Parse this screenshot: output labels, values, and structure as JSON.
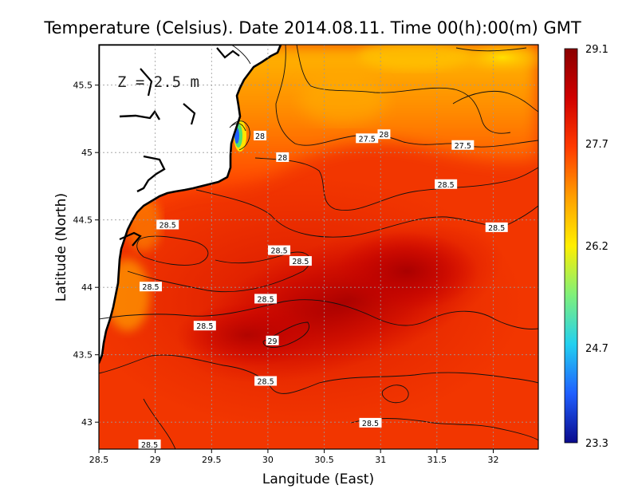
{
  "chart_data": {
    "type": "heatmap",
    "title": "Temperature (Celsius). Date 2014.08.11. Time 00(h):00(m)  GMT",
    "xlabel": "Langitude (East)",
    "ylabel": "Latitude (North)",
    "depth_label": "Z = 2.5 m",
    "xlim": [
      28.5,
      32.4
    ],
    "ylim": [
      42.8,
      45.8
    ],
    "x_ticks": [
      28.5,
      29,
      29.5,
      30,
      30.5,
      31,
      31.5,
      32
    ],
    "y_ticks": [
      43,
      43.5,
      44,
      44.5,
      45,
      45.5
    ],
    "colorbar": {
      "min": 23.3,
      "max": 29.1,
      "ticks": [
        29.1,
        27.7,
        26.2,
        24.7,
        23.3
      ],
      "colors": [
        "#0a0a8c",
        "#1f5fff",
        "#22d0f0",
        "#7ff07a",
        "#ffef00",
        "#ff9e00",
        "#ff3a00",
        "#d00000",
        "#8b0000"
      ]
    },
    "grid": true,
    "contour_labels": [
      {
        "lon": 29.93,
        "lat": 45.12,
        "value": "28"
      },
      {
        "lon": 30.13,
        "lat": 44.96,
        "value": "28"
      },
      {
        "lon": 30.88,
        "lat": 45.1,
        "value": "27.5"
      },
      {
        "lon": 31.03,
        "lat": 45.13,
        "value": "28"
      },
      {
        "lon": 31.73,
        "lat": 45.05,
        "value": "27.5"
      },
      {
        "lon": 31.58,
        "lat": 44.76,
        "value": "28.5"
      },
      {
        "lon": 29.11,
        "lat": 44.46,
        "value": "28.5"
      },
      {
        "lon": 30.1,
        "lat": 44.27,
        "value": "28.5"
      },
      {
        "lon": 30.29,
        "lat": 44.19,
        "value": "28.5"
      },
      {
        "lon": 32.03,
        "lat": 44.44,
        "value": "28.5"
      },
      {
        "lon": 28.96,
        "lat": 44.0,
        "value": "28.5"
      },
      {
        "lon": 29.98,
        "lat": 43.91,
        "value": "28.5"
      },
      {
        "lon": 29.44,
        "lat": 43.71,
        "value": "28.5"
      },
      {
        "lon": 30.04,
        "lat": 43.6,
        "value": "29"
      },
      {
        "lon": 29.98,
        "lat": 43.3,
        "value": "28.5"
      },
      {
        "lon": 30.91,
        "lat": 42.99,
        "value": "28.5"
      },
      {
        "lon": 28.95,
        "lat": 42.83,
        "value": "28.5"
      }
    ]
  }
}
